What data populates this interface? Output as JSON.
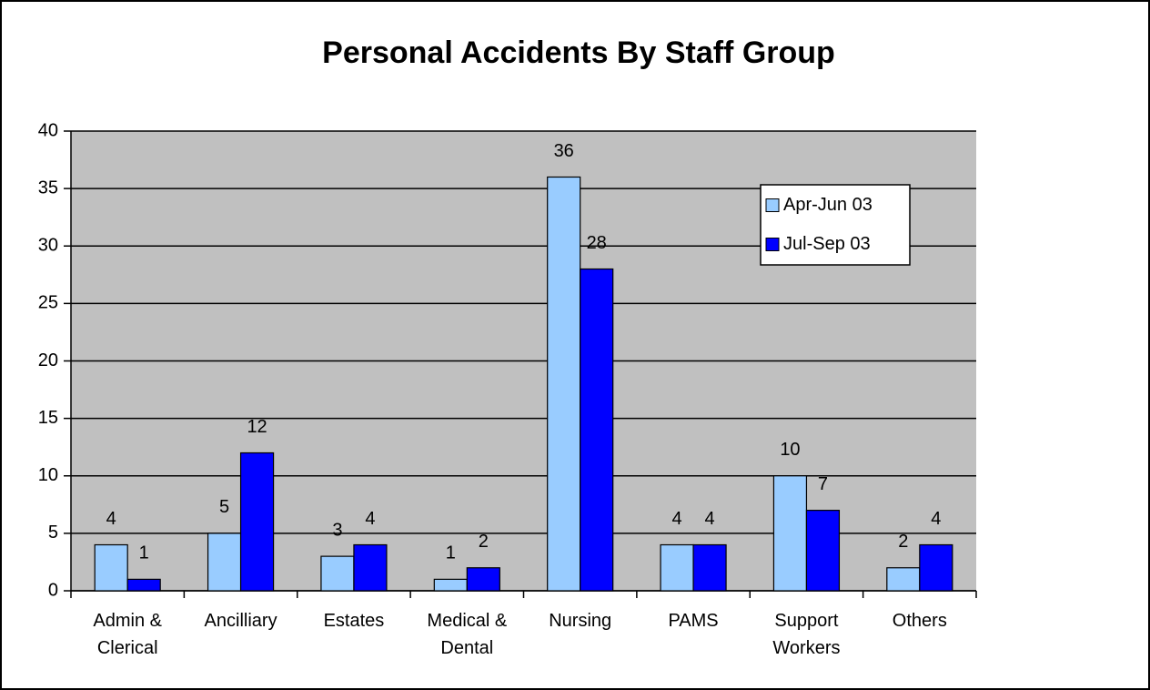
{
  "chart_data": {
    "type": "bar",
    "title": "Personal Accidents By Staff Group",
    "categories": [
      "Admin & Clerical",
      "Ancilliary",
      "Estates",
      "Medical & Dental",
      "Nursing",
      "PAMS",
      "Support Workers",
      "Others"
    ],
    "series": [
      {
        "name": "Apr-Jun 03",
        "color": "#99ccff",
        "values": [
          4,
          5,
          3,
          1,
          36,
          4,
          10,
          2
        ]
      },
      {
        "name": "Jul-Sep 03",
        "color": "#0000ff",
        "values": [
          1,
          12,
          4,
          2,
          28,
          4,
          7,
          4
        ]
      }
    ],
    "ylim": [
      0,
      40
    ],
    "yticks": [
      0,
      5,
      10,
      15,
      20,
      25,
      30,
      35,
      40
    ],
    "grid": true,
    "legend": "right"
  }
}
